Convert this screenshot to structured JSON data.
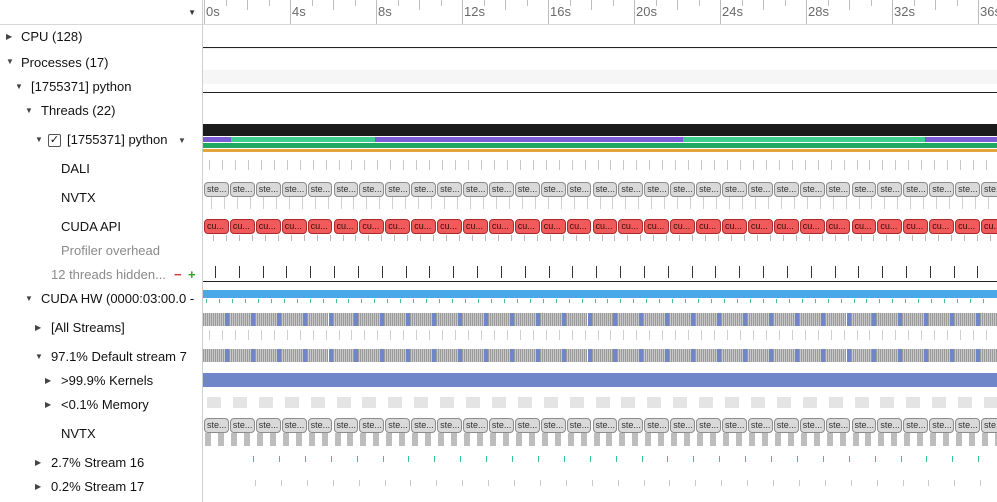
{
  "ruler": {
    "ticks": [
      "0s",
      "4s",
      "8s",
      "12s",
      "16s",
      "20s",
      "24s",
      "28s",
      "32s",
      "36s"
    ]
  },
  "tree": {
    "cpu": "CPU (128)",
    "processes": "Processes (17)",
    "process": "[1755371] python",
    "threads": "Threads (22)",
    "thread": "[1755371] python",
    "checkbox_mark": "✓",
    "dali": "DALI",
    "nvtx": "NVTX",
    "cuda_api": "CUDA API",
    "profiler_overhead": "Profiler overhead",
    "hidden_threads": "12 threads hidden...",
    "minus": "−",
    "plus": "+",
    "cuda_hw": "CUDA HW (0000:03:00.0 -",
    "all_streams": "[All Streams]",
    "default_stream": "97.1% Default stream 7",
    "kernels": ">99.9% Kernels",
    "memory": "<0.1% Memory",
    "nvtx2": "NVTX",
    "stream16": "2.7% Stream 16",
    "stream17": "0.2% Stream 17"
  },
  "tracks": {
    "nvtx_label": "ste...",
    "cuda_label": "cu..."
  },
  "colors": {
    "cuda_red": "#f05a5a",
    "nvtx_gray": "#d9d9d9",
    "kernel_blue": "#6f86c9",
    "hw_blue": "#4aa8e8",
    "thread_green": "#3ecf8e",
    "thread_purple": "#7b5bd6",
    "thread_gold": "#e5a43a"
  }
}
